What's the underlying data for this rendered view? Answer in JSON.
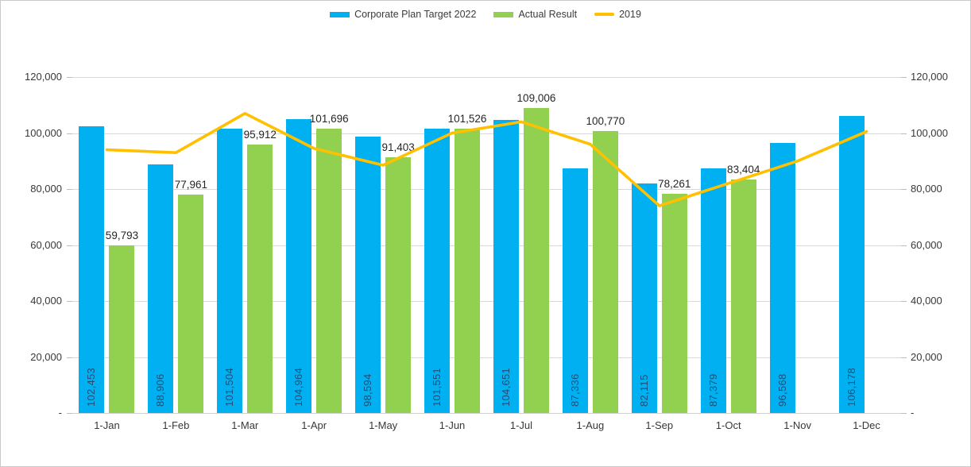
{
  "legend": {
    "items": [
      {
        "label": "Corporate Plan Target 2022",
        "color": "#00B0F0",
        "marker": "bar"
      },
      {
        "label": "Actual Result",
        "color": "#92D050",
        "marker": "bar"
      },
      {
        "label": "2019",
        "color": "#FFC000",
        "marker": "line"
      }
    ]
  },
  "colors": {
    "target_bar": "#00B0F0",
    "actual_bar": "#92D050",
    "line_2019": "#FFC000",
    "target_bar_label": "#1F4E79",
    "gridline": "#d9d9d9"
  },
  "chart_data": {
    "type": "bar",
    "title": "",
    "xlabel": "",
    "ylabel": "",
    "categories": [
      "1-Jan",
      "1-Feb",
      "1-Mar",
      "1-Apr",
      "1-May",
      "1-Jun",
      "1-Jul",
      "1-Aug",
      "1-Sep",
      "1-Oct",
      "1-Nov",
      "1-Dec"
    ],
    "series": [
      {
        "name": "Corporate Plan Target 2022",
        "chart_type": "bar",
        "color": "#00B0F0",
        "data_labels": "rotated-inside-bottom",
        "values": [
          102453,
          88906,
          101504,
          104964,
          98594,
          101551,
          104651,
          87336,
          82115,
          87379,
          96568,
          106178
        ]
      },
      {
        "name": "Actual Result",
        "chart_type": "bar",
        "color": "#92D050",
        "data_labels": "above",
        "values": [
          59793,
          77961,
          95912,
          101696,
          91403,
          101526,
          109006,
          100770,
          78261,
          83404,
          null,
          null
        ]
      },
      {
        "name": "2019",
        "chart_type": "line",
        "color": "#FFC000",
        "data_labels": "none",
        "values": [
          94000,
          93000,
          107000,
          94500,
          88500,
          100000,
          104000,
          96000,
          74000,
          82000,
          90000,
          100500
        ]
      }
    ],
    "ylim": [
      0,
      120000
    ],
    "yticks": [
      0,
      20000,
      40000,
      60000,
      80000,
      100000,
      120000
    ],
    "ytick_labels": [
      "-",
      "20,000",
      "40,000",
      "60,000",
      "80,000",
      "100,000",
      "120,000"
    ],
    "y_axes": "left-and-right",
    "grid": true,
    "legend_position": "top-center"
  }
}
